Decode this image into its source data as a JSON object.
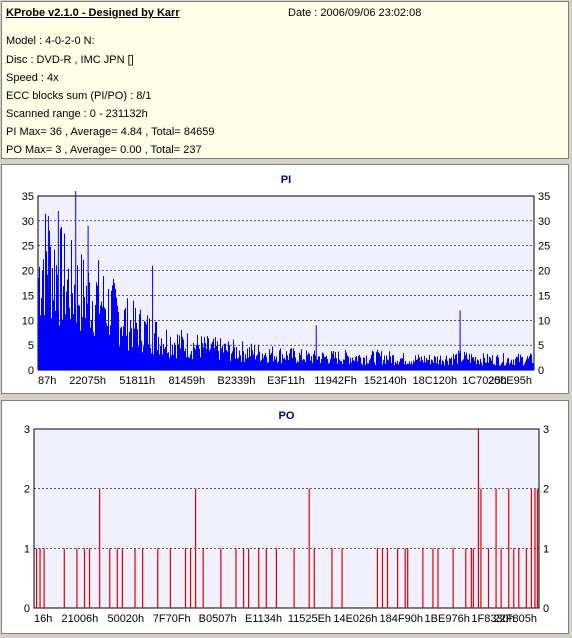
{
  "header": {
    "title": "KProbe v2.1.0 - Designed by Karr",
    "date": "Date : 2006/09/06 23:02:08",
    "lines": [
      "Model : 4-0-2-0 N:",
      "Disc : DVD-R , IMC JPN []",
      "Speed : 4x",
      "ECC blocks sum (PI/PO) : 8/1",
      "Scanned range : 0 - 231132h",
      "PI Max= 36 , Average= 4.84 , Total= 84659",
      "PO Max= 3 , Average= 0.00 , Total= 237"
    ]
  },
  "colors": {
    "pi": "#0000ff",
    "po": "#e00000",
    "plot_bg": "#f0f0ff",
    "grid": "#000000"
  },
  "chart_data": [
    {
      "type": "bar",
      "title": "PI",
      "ylim": [
        0,
        35
      ],
      "yticks": [
        0,
        5,
        10,
        15,
        20,
        25,
        30,
        35
      ],
      "xticklabels": [
        "87h",
        "22075h",
        "51811h",
        "81459h",
        "B2339h",
        "E3F11h",
        "11942Fh",
        "152140h",
        "18C120h",
        "1C7025h",
        "200E95h"
      ],
      "grid": true,
      "envelope_x_fraction": [
        0,
        0.01,
        0.03,
        0.06,
        0.09,
        0.12,
        0.15,
        0.18,
        0.22,
        0.26,
        0.3,
        0.35,
        0.4,
        0.45,
        0.5,
        0.55,
        0.6,
        0.65,
        0.7,
        0.75,
        0.8,
        0.85,
        0.9,
        0.95,
        1.0
      ],
      "envelope_values": [
        22,
        26,
        24,
        20,
        18,
        17,
        14,
        11,
        9,
        7,
        6,
        5,
        4.5,
        4,
        3.5,
        3,
        3,
        3,
        3,
        2.5,
        2.5,
        3,
        2.5,
        2.5,
        2.5
      ],
      "peaks": [
        {
          "x_fraction": 0.075,
          "value": 36
        },
        {
          "x_fraction": 0.04,
          "value": 32
        },
        {
          "x_fraction": 0.02,
          "value": 31
        },
        {
          "x_fraction": 0.1,
          "value": 29
        },
        {
          "x_fraction": 0.23,
          "value": 21
        },
        {
          "x_fraction": 0.85,
          "value": 12
        },
        {
          "x_fraction": 0.56,
          "value": 9
        }
      ]
    },
    {
      "type": "bar",
      "title": "PO",
      "ylim": [
        0,
        3
      ],
      "yticks": [
        0,
        1,
        2,
        3
      ],
      "xticklabels": [
        "16h",
        "21006h",
        "50020h",
        "7F70Fh",
        "B0507h",
        "E1134h",
        "11525Eh",
        "14E026h",
        "184F90h",
        "1BE976h",
        "1F8330h",
        "22F805h"
      ],
      "grid": true,
      "spikes": [
        {
          "x_fraction": 0.005,
          "value": 1
        },
        {
          "x_fraction": 0.012,
          "value": 1
        },
        {
          "x_fraction": 0.02,
          "value": 1
        },
        {
          "x_fraction": 0.06,
          "value": 1
        },
        {
          "x_fraction": 0.085,
          "value": 1
        },
        {
          "x_fraction": 0.1,
          "value": 1
        },
        {
          "x_fraction": 0.11,
          "value": 1
        },
        {
          "x_fraction": 0.13,
          "value": 2
        },
        {
          "x_fraction": 0.15,
          "value": 1
        },
        {
          "x_fraction": 0.165,
          "value": 1
        },
        {
          "x_fraction": 0.175,
          "value": 1
        },
        {
          "x_fraction": 0.2,
          "value": 1
        },
        {
          "x_fraction": 0.215,
          "value": 1
        },
        {
          "x_fraction": 0.245,
          "value": 1
        },
        {
          "x_fraction": 0.27,
          "value": 1
        },
        {
          "x_fraction": 0.3,
          "value": 1
        },
        {
          "x_fraction": 0.31,
          "value": 1
        },
        {
          "x_fraction": 0.32,
          "value": 2
        },
        {
          "x_fraction": 0.335,
          "value": 1
        },
        {
          "x_fraction": 0.37,
          "value": 1
        },
        {
          "x_fraction": 0.4,
          "value": 1
        },
        {
          "x_fraction": 0.415,
          "value": 1
        },
        {
          "x_fraction": 0.425,
          "value": 1
        },
        {
          "x_fraction": 0.445,
          "value": 1
        },
        {
          "x_fraction": 0.46,
          "value": 1
        },
        {
          "x_fraction": 0.48,
          "value": 1
        },
        {
          "x_fraction": 0.515,
          "value": 1
        },
        {
          "x_fraction": 0.545,
          "value": 2
        },
        {
          "x_fraction": 0.555,
          "value": 1
        },
        {
          "x_fraction": 0.59,
          "value": 1
        },
        {
          "x_fraction": 0.61,
          "value": 1
        },
        {
          "x_fraction": 0.68,
          "value": 1
        },
        {
          "x_fraction": 0.69,
          "value": 1
        },
        {
          "x_fraction": 0.7,
          "value": 1
        },
        {
          "x_fraction": 0.72,
          "value": 1
        },
        {
          "x_fraction": 0.735,
          "value": 1
        },
        {
          "x_fraction": 0.74,
          "value": 1
        },
        {
          "x_fraction": 0.77,
          "value": 1
        },
        {
          "x_fraction": 0.79,
          "value": 1
        },
        {
          "x_fraction": 0.8,
          "value": 1
        },
        {
          "x_fraction": 0.83,
          "value": 1
        },
        {
          "x_fraction": 0.855,
          "value": 1
        },
        {
          "x_fraction": 0.866,
          "value": 1
        },
        {
          "x_fraction": 0.87,
          "value": 1
        },
        {
          "x_fraction": 0.88,
          "value": 3
        },
        {
          "x_fraction": 0.885,
          "value": 2
        },
        {
          "x_fraction": 0.9,
          "value": 1
        },
        {
          "x_fraction": 0.915,
          "value": 2
        },
        {
          "x_fraction": 0.925,
          "value": 1
        },
        {
          "x_fraction": 0.94,
          "value": 2
        },
        {
          "x_fraction": 0.95,
          "value": 1
        },
        {
          "x_fraction": 0.96,
          "value": 1
        },
        {
          "x_fraction": 0.975,
          "value": 1
        },
        {
          "x_fraction": 0.985,
          "value": 2
        },
        {
          "x_fraction": 0.992,
          "value": 2
        },
        {
          "x_fraction": 0.997,
          "value": 2
        }
      ]
    }
  ]
}
